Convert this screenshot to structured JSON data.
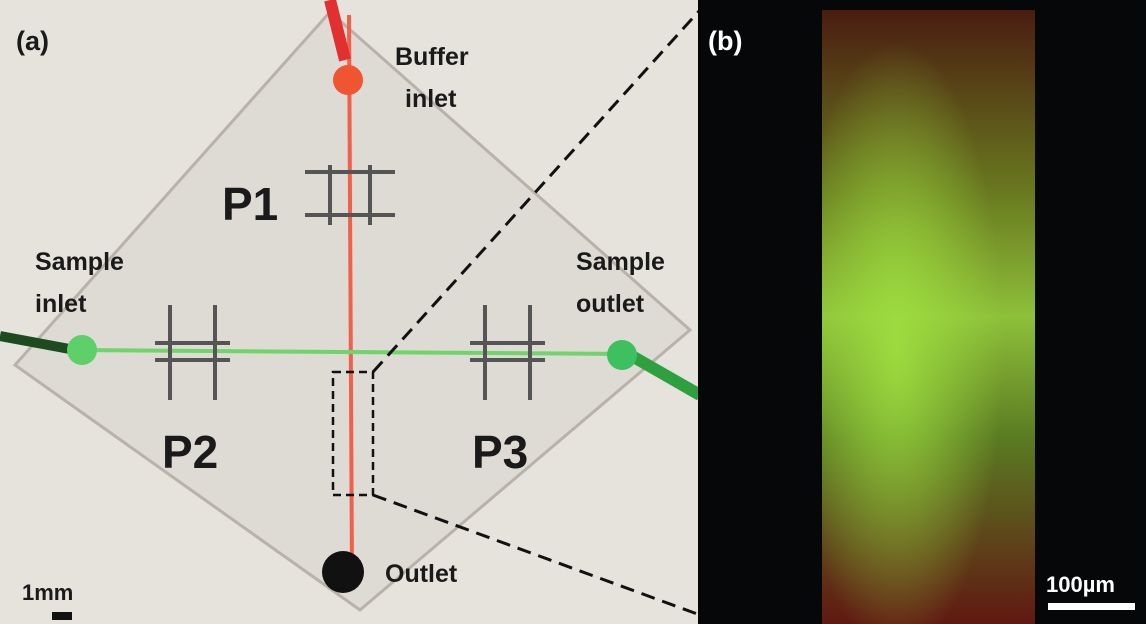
{
  "panel_a": {
    "label": "(a)",
    "buffer_inlet": [
      "Buffer",
      "inlet"
    ],
    "sample_inlet": [
      "Sample",
      "inlet"
    ],
    "sample_outlet": [
      "Sample",
      "outlet"
    ],
    "outlet": "Outlet",
    "pumps": [
      "P1",
      "P2",
      "P3"
    ],
    "scale_bar": "1mm"
  },
  "panel_b": {
    "label": "(b)",
    "scale_bar": "100µm"
  }
}
